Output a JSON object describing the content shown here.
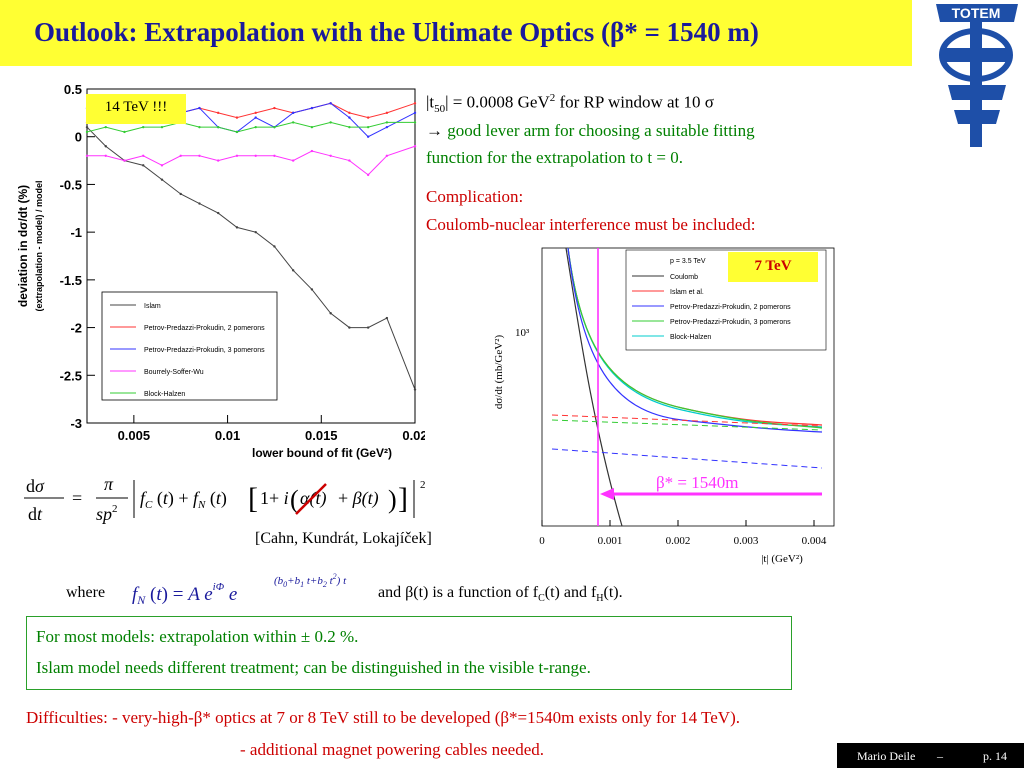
{
  "title": {
    "pre": "Outlook: Extrapolation with the Ultimate Optics (",
    "beta": "β",
    "post": "* = 1540 m)"
  },
  "logo": {
    "text": "TOTEM"
  },
  "left_chart": {
    "label": "14 TeV !!!",
    "y_title": "deviation in dσ/dt   (%)",
    "y_subtitle": "(extrapolation - model) / model",
    "x_title": "lower bound of fit   (GeV²)",
    "y_ticks": [
      "0.5",
      "0",
      "-0.5",
      "-1",
      "-1.5",
      "-2",
      "-2.5",
      "-3"
    ],
    "x_ticks": [
      "0.005",
      "0.01",
      "0.015",
      "0.02"
    ],
    "legend": [
      {
        "name": "Islam",
        "color": "#444444"
      },
      {
        "name": "Petrov-Predazzi-Prokudin, 2 pomerons",
        "color": "#ff3333"
      },
      {
        "name": "Petrov-Predazzi-Prokudin, 3 pomerons",
        "color": "#3333ff"
      },
      {
        "name": "Bourrely-Soffer-Wu",
        "color": "#ff33ff"
      },
      {
        "name": "Block-Halzen",
        "color": "#33cc33"
      }
    ]
  },
  "chart_data": [
    {
      "type": "line",
      "title": "",
      "xlabel": "lower bound of fit   (GeV²)",
      "ylabel": "deviation in dσ/dt   (%)",
      "xlim": [
        0.0025,
        0.02
      ],
      "ylim": [
        -3,
        0.5
      ],
      "x": [
        0.0025,
        0.0035,
        0.0045,
        0.0055,
        0.0065,
        0.0075,
        0.0085,
        0.0095,
        0.0105,
        0.0115,
        0.0125,
        0.0135,
        0.0145,
        0.0155,
        0.0165,
        0.0175,
        0.0185,
        0.02
      ],
      "series": [
        {
          "name": "Islam",
          "values": [
            0.1,
            -0.1,
            -0.25,
            -0.3,
            -0.45,
            -0.6,
            -0.7,
            -0.8,
            -0.95,
            -1.0,
            -1.15,
            -1.4,
            -1.6,
            -1.85,
            -2.0,
            -2.0,
            -1.9,
            -2.65
          ]
        },
        {
          "name": "Petrov-Predazzi-Prokudin, 2 pomerons",
          "values": [
            0.15,
            0.2,
            0.2,
            0.25,
            0.2,
            0.25,
            0.3,
            0.25,
            0.2,
            0.25,
            0.3,
            0.25,
            0.3,
            0.35,
            0.25,
            0.2,
            0.25,
            0.35
          ]
        },
        {
          "name": "Petrov-Predazzi-Prokudin, 3 pomerons",
          "values": [
            0.3,
            0.3,
            0.3,
            0.35,
            0.15,
            0.25,
            0.3,
            0.1,
            0.05,
            0.2,
            0.1,
            0.25,
            0.3,
            0.35,
            0.2,
            0.0,
            0.1,
            0.25
          ]
        },
        {
          "name": "Bourrely-Soffer-Wu",
          "values": [
            -0.2,
            -0.2,
            -0.25,
            -0.2,
            -0.3,
            -0.2,
            -0.2,
            -0.25,
            -0.2,
            -0.2,
            -0.2,
            -0.25,
            -0.15,
            -0.2,
            -0.25,
            -0.4,
            -0.2,
            -0.1
          ]
        },
        {
          "name": "Block-Halzen",
          "values": [
            0.05,
            0.1,
            0.05,
            0.1,
            0.1,
            0.15,
            0.1,
            0.1,
            0.05,
            0.1,
            0.1,
            0.15,
            0.1,
            0.15,
            0.1,
            0.1,
            0.15,
            0.15
          ]
        }
      ]
    },
    {
      "type": "line",
      "title": "",
      "xlabel": "|t|   (GeV²)",
      "ylabel": "dσ/dt   (mb/GeV²)",
      "xlim": [
        0,
        0.004
      ],
      "x_ticks": [
        "0",
        "0.001",
        "0.002",
        "0.003",
        "0.004"
      ],
      "y_tick": "10³",
      "log_y": true,
      "legend_header": "p = 3.5 TeV",
      "annotation": "β* = 1540m",
      "label": "7 TeV",
      "series": [
        {
          "name": "Coulomb",
          "color": "#333333"
        },
        {
          "name": "Islam et al.",
          "color": "#ff3333"
        },
        {
          "name": "Petrov-Predazzi-Prokudin, 2 pomerons",
          "color": "#3333ff"
        },
        {
          "name": "Petrov-Predazzi-Prokudin, 3 pomerons",
          "color": "#33cc33"
        },
        {
          "name": "Block-Halzen",
          "color": "#00cccc"
        }
      ]
    }
  ],
  "right_text": {
    "line1_pre": "|t",
    "line1_sub": "50",
    "line1_mid": "| = 0.0008 GeV",
    "line1_sup": "2",
    "line1_post": " for RP window at 10 σ",
    "line2_arrow": "→",
    "line2": " good lever arm for choosing a suitable fitting",
    "line3": "function for the extrapolation to t = 0.",
    "comp1": "Complication:",
    "comp2": "Coulomb-nuclear interference must be included:"
  },
  "citation": "[Cahn, Kundrát, Lokajíček]",
  "where": {
    "label": "where",
    "text_pre": "and β(t) is a function of f",
    "sub_c": "C",
    "text_mid": "(t) and f",
    "sub_h": "H",
    "text_post": "(t)."
  },
  "summary": {
    "line1": "For most models: extrapolation within ± 0.2 %.",
    "line2": "Islam model needs different treatment; can be distinguished in the visible t-range."
  },
  "difficulties": {
    "line1": "Difficulties: - very-high-β* optics at 7 or 8 TeV still to be developed (β*=1540m exists only for 14 TeV).",
    "line2": "- additional magnet powering cables needed."
  },
  "footer": {
    "author": "Mario Deile",
    "sep": "–",
    "page": "p. 14"
  }
}
